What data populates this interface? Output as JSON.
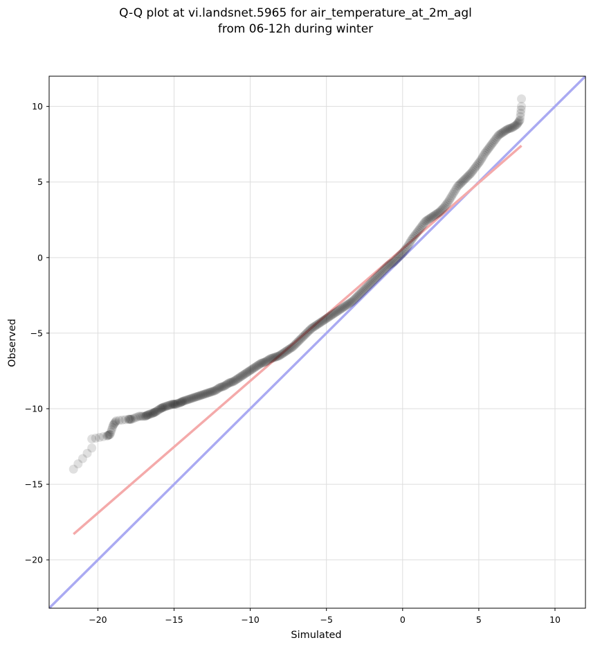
{
  "chart_data": {
    "type": "scatter",
    "title_line1": "Q-Q plot at vi.landsnet.5965 for air_temperature_at_2m_agl",
    "title_line2": "from 06-12h during winter",
    "xlabel": "Simulated",
    "ylabel": "Observed",
    "xlim": [
      -23.2,
      12.0
    ],
    "ylim": [
      -23.2,
      12.0
    ],
    "xticks": [
      -20,
      -15,
      -10,
      -5,
      0,
      5,
      10
    ],
    "yticks": [
      -20,
      -15,
      -10,
      -5,
      0,
      5,
      10
    ],
    "xtick_labels": [
      "−20",
      "−15",
      "−10",
      "−5",
      "0",
      "5",
      "10"
    ],
    "ytick_labels": [
      "−20",
      "−15",
      "−10",
      "−5",
      "0",
      "5",
      "10"
    ],
    "grid": true,
    "quantiles": {
      "sim": [
        -21.6,
        -20.4,
        -20.4,
        -19.4,
        -19.2,
        -19.0,
        -18.8,
        -18.0,
        -17.8,
        -17.3,
        -16.9,
        -16.7,
        -16.4,
        -16.2,
        -15.9,
        -15.7,
        -15.4,
        -15.1,
        -14.9,
        -14.6,
        -14.4,
        -14.1,
        -13.8,
        -13.5,
        -13.2,
        -12.9,
        -12.6,
        -12.3,
        -12.0,
        -11.7,
        -11.4,
        -11.1,
        -10.8,
        -10.5,
        -10.2,
        -9.9,
        -9.6,
        -9.3,
        -9.0,
        -8.7,
        -8.4,
        -8.1,
        -7.8,
        -7.5,
        -7.2,
        -6.9,
        -6.6,
        -6.3,
        -6.0,
        -5.7,
        -5.4,
        -5.1,
        -4.8,
        -4.5,
        -4.2,
        -3.9,
        -3.6,
        -3.3,
        -3.0,
        -2.7,
        -2.4,
        -2.1,
        -1.8,
        -1.5,
        -1.2,
        -0.9,
        -0.6,
        -0.3,
        0.0,
        0.3,
        0.6,
        0.9,
        1.2,
        1.5,
        1.8,
        2.1,
        2.4,
        2.7,
        3.0,
        3.3,
        3.6,
        3.9,
        4.2,
        4.5,
        4.8,
        5.1,
        5.4,
        5.7,
        6.0,
        6.3,
        6.6,
        6.9,
        7.2,
        7.5,
        7.7,
        7.8,
        7.8
      ],
      "obs": [
        -14.0,
        -12.6,
        -12.0,
        -11.8,
        -11.7,
        -11.1,
        -10.8,
        -10.7,
        -10.7,
        -10.5,
        -10.5,
        -10.4,
        -10.3,
        -10.2,
        -10.0,
        -9.9,
        -9.8,
        -9.7,
        -9.7,
        -9.6,
        -9.5,
        -9.4,
        -9.3,
        -9.2,
        -9.1,
        -9.0,
        -8.9,
        -8.8,
        -8.6,
        -8.5,
        -8.3,
        -8.2,
        -8.0,
        -7.8,
        -7.6,
        -7.4,
        -7.2,
        -7.0,
        -6.9,
        -6.7,
        -6.6,
        -6.5,
        -6.3,
        -6.1,
        -5.9,
        -5.6,
        -5.3,
        -5.0,
        -4.7,
        -4.5,
        -4.3,
        -4.1,
        -3.9,
        -3.7,
        -3.5,
        -3.3,
        -3.1,
        -2.9,
        -2.6,
        -2.3,
        -2.0,
        -1.7,
        -1.4,
        -1.1,
        -0.8,
        -0.5,
        -0.3,
        0.0,
        0.3,
        0.7,
        1.2,
        1.6,
        2.0,
        2.4,
        2.6,
        2.8,
        3.0,
        3.3,
        3.7,
        4.2,
        4.7,
        5.0,
        5.3,
        5.6,
        6.0,
        6.4,
        6.9,
        7.3,
        7.7,
        8.1,
        8.3,
        8.5,
        8.6,
        8.8,
        9.1,
        10.0,
        10.5
      ]
    },
    "reference_line": {
      "x": [
        -23.2,
        12.0
      ],
      "y": [
        -23.2,
        12.0
      ],
      "color": "#aaaaf2"
    },
    "regression_line": {
      "x": [
        -21.6,
        7.8
      ],
      "y": [
        -18.3,
        7.4
      ],
      "color": "#f4aaaa"
    },
    "marker_color": "#000000"
  }
}
